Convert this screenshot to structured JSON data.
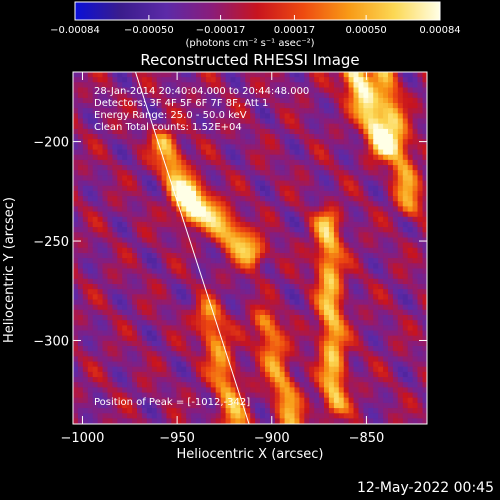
{
  "chart_data": {
    "type": "heatmap",
    "title": "Reconstructed RHESSI Image",
    "xlabel": "Heliocentric X (arcsec)",
    "ylabel": "Heliocentric Y (arcsec)",
    "xlim": [
      -1005,
      -818
    ],
    "ylim": [
      -342,
      -165
    ],
    "x_ticks": [
      -1000,
      -950,
      -900,
      -850
    ],
    "y_ticks": [
      -200,
      -250,
      -300
    ],
    "x_tick_labels": [
      "−1000",
      "−950",
      "−900",
      "−850"
    ],
    "y_tick_labels": [
      "−200",
      "−250",
      "−300"
    ],
    "colorbar": {
      "range": [
        -0.00084,
        0.00084
      ],
      "tick_values": [
        -0.00084,
        -0.0005,
        -0.00017,
        0.00017,
        0.0005,
        0.00084
      ],
      "tick_labels": [
        "−0.00084",
        "−0.00050",
        "−0.00017",
        "0.00017",
        "0.00050",
        "0.00084"
      ],
      "unit_text": "(photons cm⁻² s⁻¹ asec⁻²)",
      "colors": [
        "#0a10d8",
        "#3a1c8c",
        "#5c2aa8",
        "#8a1c7a",
        "#c8141e",
        "#ee4a10",
        "#f89a16",
        "#fcd854",
        "#ffffe6"
      ]
    },
    "limb_line": {
      "x": [
        -972,
        -912
      ],
      "y": [
        -165,
        -342
      ]
    },
    "hot_ridges": [
      {
        "x": [
          -858,
          -842
        ],
        "y": [
          -165,
          -200
        ],
        "level": 0.00084
      },
      {
        "x": [
          -944,
          -912
        ],
        "y": [
          -225,
          -255
        ],
        "level": 0.0007
      },
      {
        "x": [
          -872,
          -868
        ],
        "y": [
          -240,
          -330
        ],
        "level": 0.0006
      },
      {
        "x": [
          -842,
          -828
        ],
        "y": [
          -165,
          -230
        ],
        "level": 0.0005
      },
      {
        "x": [
          -958,
          -945
        ],
        "y": [
          -200,
          -235
        ],
        "level": 0.0006
      },
      {
        "x": [
          -935,
          -920
        ],
        "y": [
          -285,
          -340
        ],
        "level": 0.0005
      },
      {
        "x": [
          -905,
          -890
        ],
        "y": [
          -290,
          -340
        ],
        "level": 0.0005
      }
    ]
  },
  "info": {
    "time_range": "28-Jan-2014 20:40:04.000 to 20:44:48.000",
    "detectors": "Detectors: 3F 4F 5F 6F 7F 8F, Att 1",
    "energy": "Energy Range: 25.0 - 50.0 keV",
    "clean": "Clean     Total counts: 1.52E+04",
    "peak": "Position of Peak = [-1012,-342]"
  },
  "footer": "12-May-2022 00:45"
}
